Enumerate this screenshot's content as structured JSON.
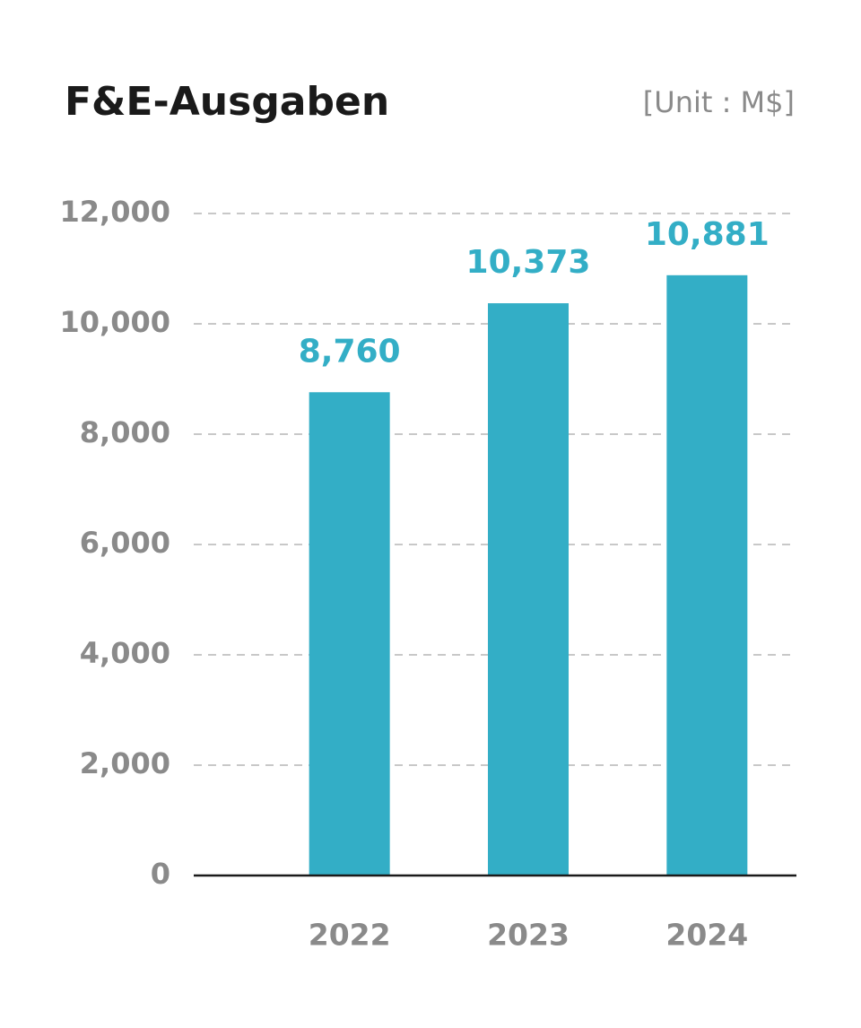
{
  "chart_data": {
    "type": "bar",
    "title": "F&E-Ausgaben",
    "unit_label": "[Unit : M$]",
    "categories": [
      "2022",
      "2023",
      "2024"
    ],
    "values": [
      8760,
      10373,
      10881
    ],
    "value_labels": [
      "8,760",
      "10,373",
      "10,881"
    ],
    "color": "#33aec6",
    "ylim": [
      0,
      12000
    ],
    "yticks": [
      0,
      {
        "value": 2000,
        "label": "2,000"
      },
      {
        "value": 4000,
        "label": "4,000"
      },
      {
        "value": 6000,
        "label": "6,000"
      },
      {
        "value": 8000,
        "label": "8,000"
      },
      {
        "value": 10000,
        "label": "10,000"
      },
      {
        "value": 12000,
        "label": "12,000"
      }
    ],
    "grid": true
  }
}
